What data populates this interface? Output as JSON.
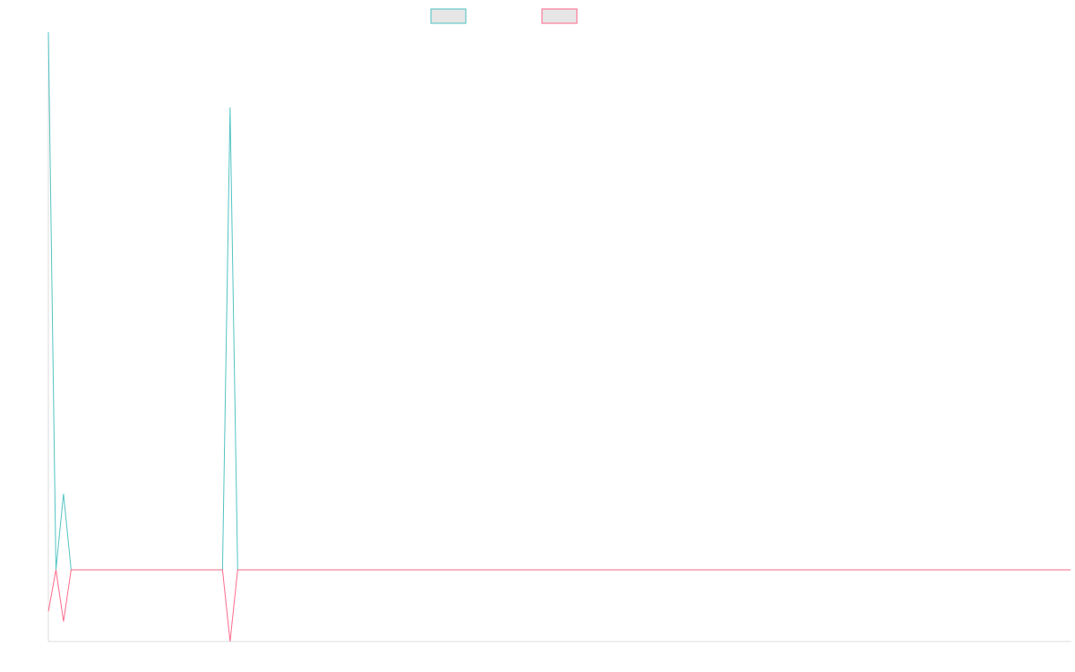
{
  "chart_data": {
    "type": "line",
    "title": "",
    "xlabel": "",
    "ylabel": "",
    "x": [
      0,
      1,
      2,
      3,
      4,
      5,
      6,
      7,
      8,
      9,
      10,
      11,
      12,
      13,
      14,
      15,
      16,
      17,
      18,
      19,
      20,
      21,
      22,
      23,
      24,
      25,
      26,
      27,
      28,
      29,
      30,
      31,
      32,
      33,
      34,
      35,
      36,
      37,
      38,
      39,
      40,
      41,
      42,
      43,
      44,
      45,
      46,
      47,
      48,
      49,
      50,
      51,
      52,
      53,
      54,
      55,
      56,
      57,
      58,
      59,
      60,
      61,
      62,
      63,
      64,
      65,
      66,
      67,
      68,
      69,
      70,
      71,
      72,
      73,
      74,
      75,
      76,
      77,
      78,
      79,
      80,
      81,
      82,
      83,
      84,
      85,
      86,
      87,
      88,
      89,
      90,
      91,
      92,
      93,
      94,
      95,
      96,
      97,
      98,
      99,
      100,
      101,
      102,
      103,
      104,
      105,
      106,
      107,
      108,
      109,
      110,
      111,
      112,
      113,
      114,
      115,
      116,
      117,
      118,
      119,
      120,
      121,
      122,
      123,
      124,
      125,
      126,
      127,
      128,
      129,
      130,
      131,
      132,
      133,
      134,
      135
    ],
    "xlim": [
      0,
      135
    ],
    "ylim": [
      -1.0,
      7.5
    ],
    "grid": false,
    "legend": {
      "position": "top-center"
    },
    "series": [
      {
        "color": "#4bc0c0",
        "values": [
          7.5,
          0,
          1.06,
          0,
          0,
          0,
          0,
          0,
          0,
          0,
          0,
          0,
          0,
          0,
          0,
          0,
          0,
          0,
          0,
          0,
          0,
          0,
          0,
          0,
          6.45,
          0,
          0,
          0,
          0,
          0,
          0,
          0,
          0,
          0,
          0,
          0,
          0,
          0,
          0,
          0,
          0,
          0,
          0,
          0,
          0,
          0,
          0,
          0,
          0,
          0,
          0,
          0,
          0,
          0,
          0,
          0,
          0,
          0,
          0,
          0,
          0,
          0,
          0,
          0,
          0,
          0,
          0,
          0,
          0,
          0,
          0,
          0,
          0,
          0,
          0,
          0,
          0,
          0,
          0,
          0,
          0,
          0,
          0,
          0,
          0,
          0,
          0,
          0,
          0,
          0,
          0,
          0,
          0,
          0,
          0,
          0,
          0,
          0,
          0,
          0,
          0,
          0,
          0,
          0,
          0,
          0,
          0,
          0,
          0,
          0,
          0,
          0,
          0,
          0,
          0,
          0,
          0,
          0,
          0,
          0,
          0,
          0,
          0,
          0,
          0,
          0,
          0,
          0,
          0,
          0,
          0,
          0,
          0,
          0,
          0,
          0
        ]
      },
      {
        "color": "#ff6384",
        "values": [
          -0.58,
          0,
          -0.72,
          0,
          0,
          0,
          0,
          0,
          0,
          0,
          0,
          0,
          0,
          0,
          0,
          0,
          0,
          0,
          0,
          0,
          0,
          0,
          0,
          0,
          -1.0,
          0,
          0,
          0,
          0,
          0,
          0,
          0,
          0,
          0,
          0,
          0,
          0,
          0,
          0,
          0,
          0,
          0,
          0,
          0,
          0,
          0,
          0,
          0,
          0,
          0,
          0,
          0,
          0,
          0,
          0,
          0,
          0,
          0,
          0,
          0,
          0,
          0,
          0,
          0,
          0,
          0,
          0,
          0,
          0,
          0,
          0,
          0,
          0,
          0,
          0,
          0,
          0,
          0,
          0,
          0,
          0,
          0,
          0,
          0,
          0,
          0,
          0,
          0,
          0,
          0,
          0,
          0,
          0,
          0,
          0,
          0,
          0,
          0,
          0,
          0,
          0,
          0,
          0,
          0,
          0,
          0,
          0,
          0,
          0,
          0,
          0,
          0,
          0,
          0,
          0,
          0,
          0,
          0,
          0,
          0,
          0,
          0,
          0,
          0,
          0,
          0,
          0,
          0,
          0,
          0,
          0,
          0,
          0,
          0,
          0,
          0
        ]
      }
    ]
  }
}
